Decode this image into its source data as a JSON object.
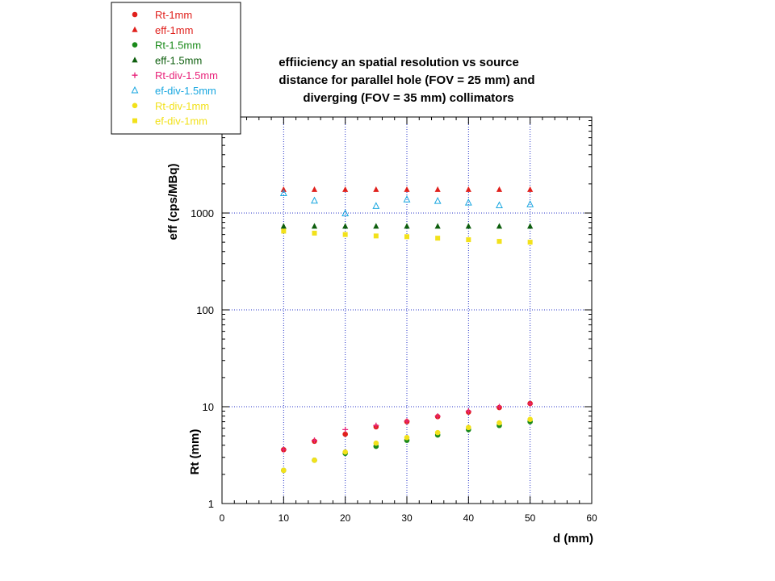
{
  "chart_data": {
    "type": "scatter",
    "title_lines": [
      "effiiciency an spatial resolution vs source",
      "distance for parallel hole (FOV = 25 mm) and",
      "diverging (FOV = 35 mm) collimators"
    ],
    "xlabel": "d (mm)",
    "ylabels": [
      "eff (cps/MBq)",
      "Rt (mm)"
    ],
    "x_scale": "linear",
    "y_scale": "log",
    "xlim": [
      0,
      60
    ],
    "ylim": [
      1,
      10000
    ],
    "x_ticks": [
      0,
      10,
      20,
      30,
      40,
      50,
      60
    ],
    "y_tick_labels": [
      "1",
      "10",
      "100",
      "1000"
    ],
    "y_tick_values": [
      1,
      10,
      100,
      1000
    ],
    "grid": true,
    "legend_position": "top-left",
    "series": [
      {
        "name": "Rt-1mm",
        "color": "#e0201c",
        "marker": "circle",
        "x": [
          10,
          15,
          20,
          25,
          30,
          35,
          40,
          45,
          50
        ],
        "y": [
          3.6,
          4.4,
          5.2,
          6.2,
          7.0,
          7.9,
          8.8,
          9.8,
          10.8
        ]
      },
      {
        "name": "eff-1mm",
        "color": "#e0201c",
        "marker": "triangle",
        "x": [
          10,
          15,
          20,
          25,
          30,
          35,
          40,
          45,
          50
        ],
        "y": [
          1750,
          1750,
          1750,
          1750,
          1750,
          1750,
          1750,
          1750,
          1750
        ]
      },
      {
        "name": "Rt-1.5mm",
        "color": "#1a8a1a",
        "marker": "circle",
        "x": [
          10,
          15,
          20,
          25,
          30,
          35,
          40,
          45,
          50
        ],
        "y": [
          2.2,
          2.8,
          3.3,
          3.9,
          4.5,
          5.1,
          5.8,
          6.4,
          7.0
        ]
      },
      {
        "name": "eff-1.5mm",
        "color": "#0d5e0d",
        "marker": "triangle",
        "x": [
          10,
          15,
          20,
          25,
          30,
          35,
          40,
          45,
          50
        ],
        "y": [
          730,
          730,
          730,
          730,
          730,
          730,
          730,
          730,
          730
        ]
      },
      {
        "name": "Rt-div-1.5mm",
        "color": "#e8237a",
        "marker": "plus",
        "x": [
          10,
          15,
          20,
          25,
          30,
          35,
          40,
          45,
          50
        ],
        "y": [
          3.6,
          4.5,
          5.8,
          6.4,
          7.1,
          8.0,
          9.0,
          10.0,
          10.7
        ]
      },
      {
        "name": "ef-div-1.5mm",
        "color": "#19a7e0",
        "marker": "open-triangle",
        "x": [
          10,
          15,
          20,
          25,
          30,
          35,
          40,
          45,
          50
        ],
        "y": [
          1600,
          1340,
          990,
          1180,
          1380,
          1330,
          1280,
          1200,
          1230
        ]
      },
      {
        "name": "Rt-div-1mm",
        "color": "#f2e11b",
        "marker": "circle",
        "x": [
          10,
          15,
          20,
          25,
          30,
          35,
          40,
          45,
          50
        ],
        "y": [
          2.2,
          2.8,
          3.4,
          4.2,
          4.8,
          5.4,
          6.1,
          6.8,
          7.4
        ]
      },
      {
        "name": "ef-div-1mm",
        "color": "#f2e11b",
        "marker": "square",
        "x": [
          10,
          15,
          20,
          25,
          30,
          35,
          40,
          45,
          50
        ],
        "y": [
          650,
          620,
          600,
          580,
          570,
          550,
          530,
          510,
          500
        ]
      }
    ]
  }
}
